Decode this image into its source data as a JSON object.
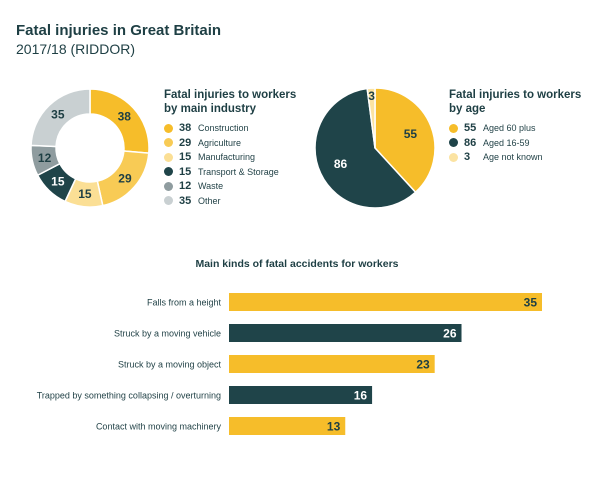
{
  "header": {
    "title": "Fatal injuries in Great Britain",
    "subtitle": "2017/18 (RIDDOR)"
  },
  "chart_data": [
    {
      "type": "pie",
      "variant": "donut",
      "title": "Fatal injuries to workers by main industry",
      "title_lines": [
        "Fatal injuries to workers",
        "by main industry"
      ],
      "legend_position": "right",
      "slices": [
        {
          "label": "Construction",
          "value": 38,
          "color": "#f6bd2a",
          "text_color": "#1e3f44"
        },
        {
          "label": "Agriculture",
          "value": 29,
          "color": "#f8cb55",
          "text_color": "#1e3f44"
        },
        {
          "label": "Manufacturing",
          "value": 15,
          "color": "#fbdf95",
          "text_color": "#1e3f44"
        },
        {
          "label": "Transport & Storage",
          "value": 15,
          "color": "#1f4449",
          "text_color": "#ffffff"
        },
        {
          "label": "Waste",
          "value": 12,
          "color": "#8f9c9f",
          "text_color": "#1e3f44"
        },
        {
          "label": "Other",
          "value": 35,
          "color": "#c9d0d2",
          "text_color": "#1e3f44"
        }
      ]
    },
    {
      "type": "pie",
      "title": "Fatal injuries to workers by age",
      "title_lines": [
        "Fatal injuries to workers",
        "by age"
      ],
      "legend_position": "right",
      "slices": [
        {
          "label": "Aged 60 plus",
          "value": 55,
          "color": "#f6bd2a",
          "text_color": "#1e3f44"
        },
        {
          "label": "Aged 16-59",
          "value": 86,
          "color": "#1f4449",
          "text_color": "#ffffff"
        },
        {
          "label": "Age not known",
          "value": 3,
          "color": "#fbe3a2",
          "text_color": "#1e3f44"
        }
      ]
    },
    {
      "type": "bar",
      "orientation": "horizontal",
      "title": "Main kinds of fatal accidents for workers",
      "xlim": [
        0,
        35
      ],
      "bars": [
        {
          "label": "Falls from a height",
          "value": 35,
          "color": "#f6bd2a",
          "text_color": "#1e3f44"
        },
        {
          "label": "Struck by a moving vehicle",
          "value": 26,
          "color": "#1f4449",
          "text_color": "#ffffff"
        },
        {
          "label": "Struck by a moving object",
          "value": 23,
          "color": "#f6bd2a",
          "text_color": "#1e3f44"
        },
        {
          "label": "Trapped by something collapsing / overturning",
          "value": 16,
          "color": "#1f4449",
          "text_color": "#ffffff"
        },
        {
          "label": "Contact with moving machinery",
          "value": 13,
          "color": "#f6bd2a",
          "text_color": "#1e3f44"
        }
      ]
    }
  ]
}
